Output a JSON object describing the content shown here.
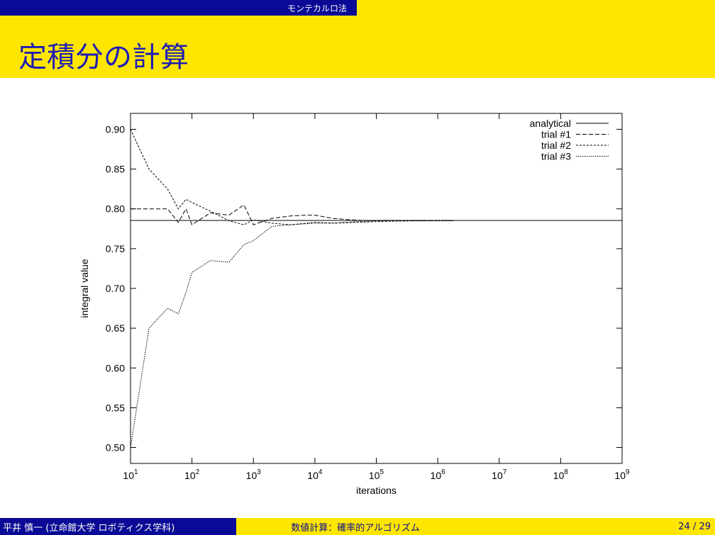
{
  "header": {
    "section": "モンテカルロ法",
    "title": "定積分の計算"
  },
  "footer": {
    "author": "平井 慎一 (立命館大学 ロボティクス学科)",
    "subject": "数値計算：確率的アルゴリズム",
    "page": "24 / 29"
  },
  "colors": {
    "bar_blue": "#0a0a96",
    "bar_yellow": "#ffe600",
    "title_blue": "#1e1eb4"
  },
  "chart_data": {
    "type": "line",
    "xscale": "log",
    "xlabel": "iterations",
    "ylabel": "integral value",
    "xlim": [
      10,
      1000000000
    ],
    "ylim": [
      0.48,
      0.92
    ],
    "x_ticks": [
      10,
      100,
      1000,
      10000,
      100000,
      1000000,
      10000000,
      100000000,
      1000000000
    ],
    "x_tick_exponents": [
      "1",
      "2",
      "3",
      "4",
      "5",
      "6",
      "7",
      "8",
      "9"
    ],
    "y_ticks": [
      "0.50",
      "0.55",
      "0.60",
      "0.65",
      "0.70",
      "0.75",
      "0.80",
      "0.85",
      "0.90"
    ],
    "grid": false,
    "legend_position": "top-right",
    "series": [
      {
        "name": "analytical",
        "dash": "solid",
        "x": [
          10,
          1000000000
        ],
        "y": [
          0.7854,
          0.7854
        ]
      },
      {
        "name": "trial #1",
        "dash": "dashed",
        "x": [
          10,
          20,
          40,
          60,
          80,
          100,
          200,
          400,
          700,
          1000,
          2000,
          4000,
          7000,
          10000,
          20000,
          40000,
          100000,
          200000,
          500000,
          1000000,
          1800000
        ],
        "y": [
          0.8,
          0.8,
          0.8,
          0.783,
          0.8,
          0.78,
          0.795,
          0.792,
          0.805,
          0.78,
          0.788,
          0.791,
          0.792,
          0.792,
          0.788,
          0.786,
          0.785,
          0.7855,
          0.785,
          0.7854,
          0.7852
        ]
      },
      {
        "name": "trial #2",
        "dash": "fine-dashed",
        "x": [
          10,
          20,
          40,
          60,
          80,
          100,
          200,
          400,
          700,
          1000,
          2000,
          4000,
          10000,
          20000,
          50000,
          100000,
          200000,
          500000,
          1000000,
          1800000
        ],
        "y": [
          0.9,
          0.85,
          0.825,
          0.8,
          0.812,
          0.808,
          0.797,
          0.785,
          0.78,
          0.786,
          0.782,
          0.78,
          0.783,
          0.782,
          0.783,
          0.784,
          0.7845,
          0.785,
          0.785,
          0.785
        ]
      },
      {
        "name": "trial #3",
        "dash": "dotted",
        "x": [
          10,
          20,
          40,
          60,
          80,
          100,
          200,
          400,
          700,
          1000,
          2000,
          4000,
          10000,
          20000,
          50000,
          100000,
          200000,
          500000,
          1000000,
          1800000
        ],
        "y": [
          0.5,
          0.65,
          0.675,
          0.668,
          0.695,
          0.72,
          0.735,
          0.733,
          0.755,
          0.76,
          0.778,
          0.78,
          0.782,
          0.782,
          0.784,
          0.785,
          0.7853,
          0.7855,
          0.7854,
          0.7854
        ]
      }
    ]
  }
}
